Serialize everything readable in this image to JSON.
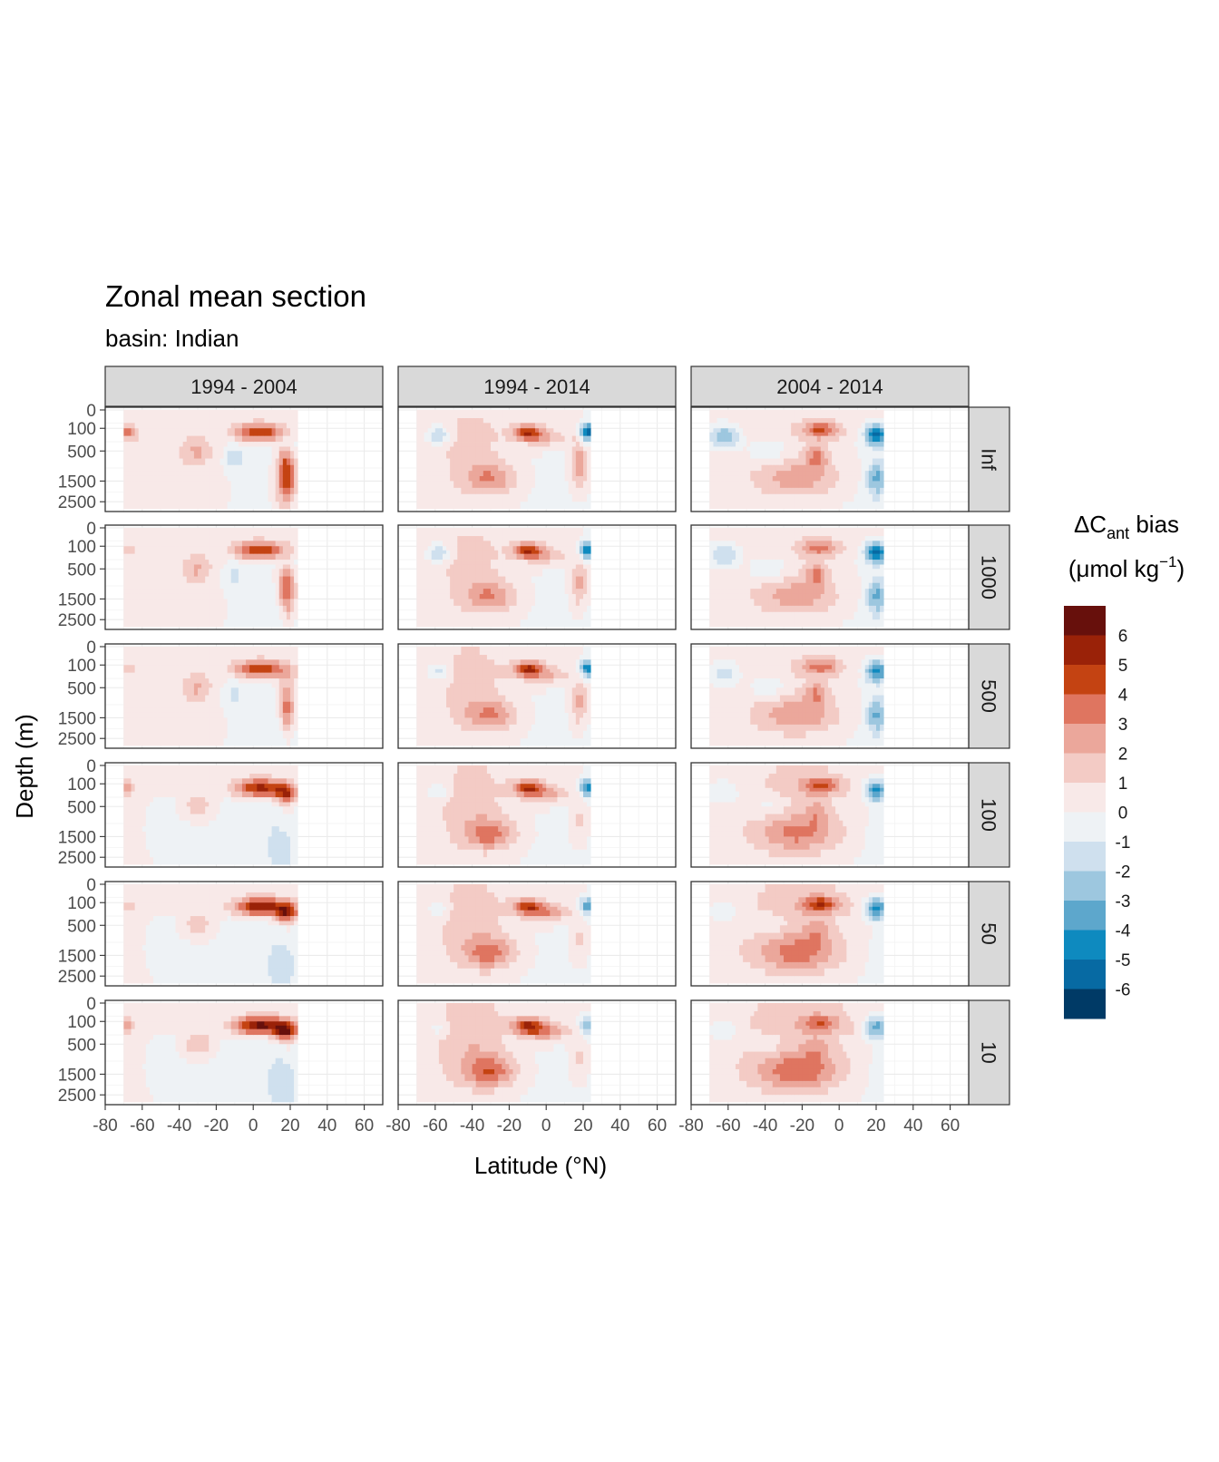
{
  "chart_data": {
    "type": "heatmap",
    "title": "Zonal mean section",
    "subtitle": "basin: Indian",
    "xlabel": "Latitude (°N)",
    "ylabel": "Depth (m)",
    "xlim": [
      -80,
      70
    ],
    "x_ticks": [
      -80,
      -60,
      -40,
      -20,
      0,
      20,
      40,
      60
    ],
    "x_tick_labels": [
      "-80",
      "-60",
      "-40",
      "-20",
      "0",
      "20",
      "40",
      "60"
    ],
    "y_ticks": [
      0,
      100,
      500,
      1500,
      2500
    ],
    "y_tick_labels": [
      "0",
      "100",
      "500",
      "1500",
      "2500"
    ],
    "y_reversed": true,
    "column_facets": [
      "1994 - 2004",
      "1994 - 2014",
      "2004 - 2014"
    ],
    "row_facets": [
      "Inf",
      "1000",
      "500",
      "100",
      "50",
      "10"
    ],
    "data_lat_range": [
      -70,
      24
    ],
    "legend": {
      "title_main": "ΔC",
      "title_sub": "ant",
      "title_rest": " bias",
      "units_open": "(μmol kg",
      "units_sup": "−1",
      "units_close": ")",
      "position": "right",
      "labels": [
        "6",
        "5",
        "4",
        "3",
        "2",
        "1",
        "0",
        "-1",
        "-2",
        "-3",
        "-4",
        "-5",
        "-6"
      ],
      "colors": [
        "#67100c",
        "#9a2208",
        "#c44312",
        "#df7560",
        "#eba79b",
        "#f3cbc5",
        "#f8e9e8",
        "#eef2f5",
        "#cfe0ee",
        "#9dc7df",
        "#5da7cc",
        "#0e8abf",
        "#076aa3",
        "#003a66"
      ]
    },
    "features": [
      {
        "lat": -68,
        "depth": 150,
        "w": 5,
        "h": 0.6,
        "v": [
          3.0,
          1.2,
          1.2,
          2.2,
          1.6,
          2.2
        ],
        "col": 0
      },
      {
        "lat": 4,
        "depth": 150,
        "w": 14,
        "h": 0.7,
        "v": [
          4.8,
          4.8,
          4.6,
          5.2,
          5.8,
          6.3
        ],
        "col": 0
      },
      {
        "lat": 18,
        "depth": 250,
        "w": 6,
        "h": 0.8,
        "v": [
          -1.5,
          -1.0,
          0.5,
          4.0,
          4.8,
          5.0
        ],
        "col": 0
      },
      {
        "lat": 18,
        "depth": 1200,
        "w": 5,
        "h": 2.2,
        "v": [
          5.2,
          4.8,
          4.4,
          0.5,
          0.2,
          0.2
        ],
        "col": 0
      },
      {
        "lat": 15,
        "depth": 1900,
        "w": 8,
        "h": 2.0,
        "v": [
          0.5,
          -1.0,
          -1.4,
          -1.5,
          -1.5,
          -1.7
        ],
        "col": 0
      },
      {
        "lat": -30,
        "depth": 500,
        "w": 8,
        "h": 1.0,
        "v": [
          1.9,
          1.9,
          1.9,
          1.9,
          1.9,
          2.2
        ],
        "col": 0
      },
      {
        "lat": -10,
        "depth": 700,
        "w": 5,
        "h": 1.0,
        "v": [
          -1.6,
          -1.3,
          -1.3,
          -0.5,
          -0.5,
          -0.5
        ],
        "col": 0
      },
      {
        "lat": -45,
        "depth": 1200,
        "w": 25,
        "h": 4.0,
        "v": [
          0.6,
          0.4,
          0.4,
          -0.4,
          -0.4,
          -0.4
        ],
        "col": 0
      },
      {
        "lat": -58,
        "depth": 200,
        "w": 6,
        "h": 0.7,
        "v": [
          -2.8,
          -2.8,
          -2.0,
          -1.8,
          -1.5,
          -1.2
        ],
        "col": 1
      },
      {
        "lat": -10,
        "depth": 150,
        "w": 8,
        "h": 0.6,
        "v": [
          4.6,
          4.6,
          4.6,
          4.4,
          4.0,
          4.4
        ],
        "col": 1
      },
      {
        "lat": 22,
        "depth": 150,
        "w": 4,
        "h": 0.7,
        "v": [
          -6.0,
          -5.5,
          -5.0,
          -4.8,
          -4.0,
          -3.0
        ],
        "col": 1
      },
      {
        "lat": 18,
        "depth": 900,
        "w": 5,
        "h": 2.0,
        "v": [
          3.0,
          2.5,
          2.5,
          1.5,
          1.5,
          1.5
        ],
        "col": 1
      },
      {
        "lat": -30,
        "depth": 1400,
        "w": 14,
        "h": 1.2,
        "v": [
          2.6,
          2.6,
          2.6,
          3.0,
          3.0,
          3.2
        ],
        "col": 1
      },
      {
        "lat": -40,
        "depth": 400,
        "w": 20,
        "h": 3.5,
        "v": [
          1.2,
          1.2,
          1.3,
          1.4,
          1.5,
          1.8
        ],
        "col": 1
      },
      {
        "lat": 0,
        "depth": 250,
        "w": 12,
        "h": 0.8,
        "v": [
          1.6,
          1.6,
          1.8,
          2.2,
          2.6,
          2.8
        ],
        "col": 1
      },
      {
        "lat": -62,
        "depth": 220,
        "w": 8,
        "h": 0.9,
        "v": [
          -3.5,
          -2.5,
          -2.0,
          -1.6,
          -1.4,
          -1.4
        ],
        "col": 2
      },
      {
        "lat": -10,
        "depth": 120,
        "w": 10,
        "h": 0.6,
        "v": [
          3.6,
          3.0,
          3.0,
          3.4,
          3.8,
          2.6
        ],
        "col": 2
      },
      {
        "lat": 20,
        "depth": 180,
        "w": 6,
        "h": 0.8,
        "v": [
          -5.8,
          -5.6,
          -5.0,
          -5.0,
          -5.2,
          -4.2
        ],
        "col": 2
      },
      {
        "lat": 20,
        "depth": 1400,
        "w": 5,
        "h": 1.3,
        "v": [
          -3.2,
          -3.2,
          -3.2,
          -0.6,
          -0.4,
          -0.4
        ],
        "col": 2
      },
      {
        "lat": -22,
        "depth": 1400,
        "w": 22,
        "h": 1.4,
        "v": [
          2.2,
          2.2,
          2.4,
          2.5,
          2.6,
          2.8
        ],
        "col": 2
      },
      {
        "lat": -12,
        "depth": 650,
        "w": 6,
        "h": 1.0,
        "v": [
          2.6,
          2.4,
          2.2,
          1.4,
          1.4,
          1.2
        ],
        "col": 2
      },
      {
        "lat": -38,
        "depth": 500,
        "w": 10,
        "h": 0.9,
        "v": [
          -1.6,
          -1.6,
          -1.4,
          -1.3,
          -1.2,
          -1.1
        ],
        "col": 2
      },
      {
        "lat": -20,
        "depth": 400,
        "w": 35,
        "h": 4.5,
        "v": [
          0.6,
          0.6,
          0.7,
          1.2,
          1.4,
          1.6
        ],
        "col": 2
      }
    ]
  }
}
